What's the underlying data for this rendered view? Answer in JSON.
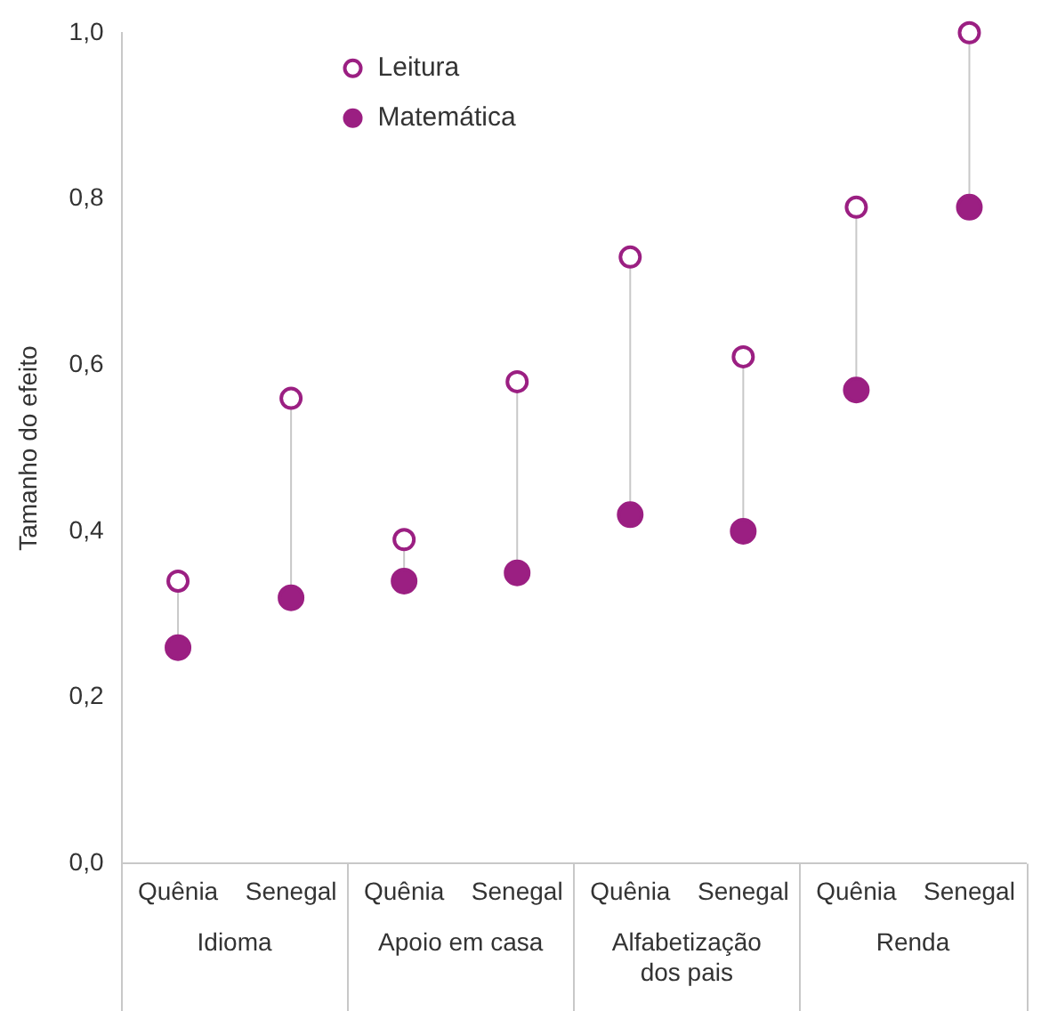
{
  "chart_data": {
    "type": "scatter",
    "ylabel": "Tamanho do efeito",
    "categories": [
      "Quênia",
      "Senegal",
      "Quênia",
      "Senegal",
      "Quênia",
      "Senegal",
      "Quênia",
      "Senegal"
    ],
    "annotations": [
      "Idioma",
      "Apoio em casa",
      "Alfabetização dos pais",
      "Renda"
    ],
    "series": [
      {
        "name": "Leitura",
        "color": "#9b1f82",
        "values": [
          0.34,
          0.56,
          0.39,
          0.58,
          0.73,
          0.61,
          0.79,
          1.0
        ]
      },
      {
        "name": "Matemática",
        "color": "#9b1f82",
        "values": [
          0.26,
          0.32,
          0.34,
          0.35,
          0.42,
          0.4,
          0.57,
          0.79
        ]
      }
    ],
    "ylim": [
      0,
      1
    ],
    "yticks": [
      {
        "value": 0,
        "label": "0,0"
      },
      {
        "value": 0.2,
        "label": "0,2"
      },
      {
        "value": 0.4,
        "label": "0,4"
      },
      {
        "value": 0.6,
        "label": "0,6"
      },
      {
        "value": 0.8,
        "label": "0,8"
      },
      {
        "value": 1,
        "label": "1,0"
      }
    ],
    "grid": false,
    "legend": "top left",
    "marker": "circle"
  }
}
